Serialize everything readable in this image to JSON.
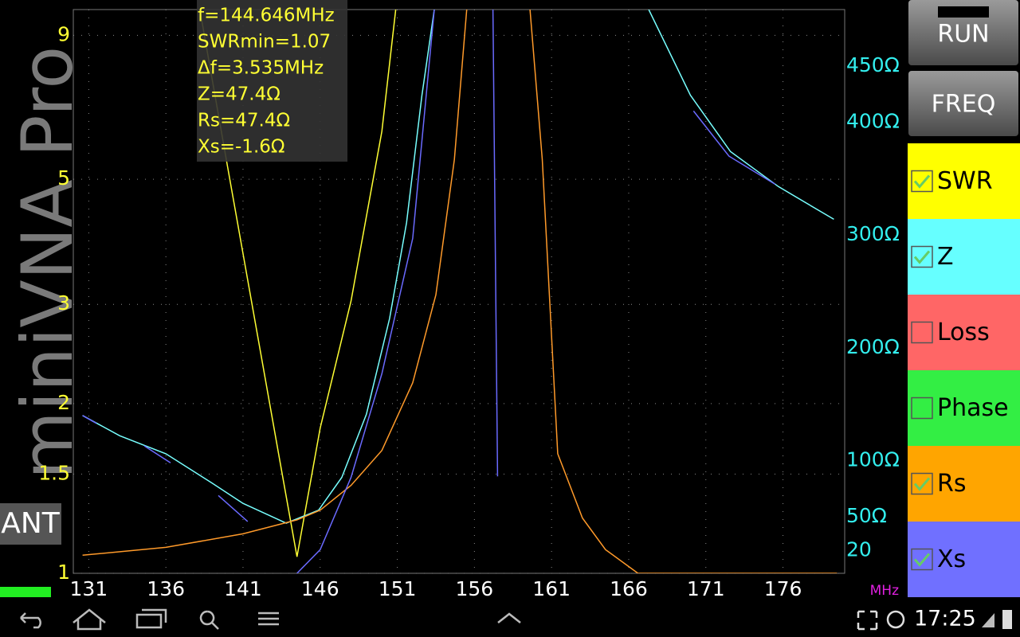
{
  "chart_data": {
    "type": "line",
    "annotations": [
      "f=144.646MHz",
      "SWRmin=1.07",
      "Δf=3.535MHz",
      "Z=47.4Ω",
      "Rs=47.4Ω",
      "Xs=-1.6Ω"
    ],
    "xlabel": "MHz",
    "xlim": [
      130,
      180
    ],
    "xticks": [
      131,
      136,
      141,
      146,
      151,
      156,
      161,
      166,
      171,
      176
    ],
    "ylim": [
      1,
      10
    ],
    "ylog": true,
    "yticks": [
      1,
      1.5,
      2,
      3,
      5,
      9
    ],
    "y2lim": [
      0,
      500
    ],
    "y2ticks": [
      20,
      {
        "value": 50,
        "label": "50Ω"
      },
      {
        "value": 100,
        "label": "100Ω"
      },
      {
        "value": 200,
        "label": "200Ω"
      },
      {
        "value": 300,
        "label": "300Ω"
      },
      {
        "value": 400,
        "label": "400Ω"
      },
      {
        "value": 450,
        "label": "450Ω"
      }
    ],
    "grid": true,
    "series": [
      {
        "name": "SWR",
        "color": "#ffff33",
        "axis": "y",
        "x": [
          138.2,
          140,
          142,
          143.5,
          144.5,
          146,
          148,
          150,
          150.9
        ],
        "values": [
          10,
          5.26,
          2.59,
          1.52,
          1.07,
          1.81,
          3.04,
          6.08,
          10
        ]
      },
      {
        "name": "Z",
        "color": "#77ffff",
        "axis": "y2",
        "x": [
          130.6,
          133,
          136,
          139,
          141,
          143.8,
          145.9,
          147.4,
          149,
          150.5,
          151.6,
          152.6,
          153.4,
          160,
          167.3,
          170,
          172.6,
          175.7,
          179.3
        ],
        "values": [
          140,
          122,
          106,
          80,
          62,
          44.5,
          56,
          85,
          141,
          226,
          311,
          424,
          500,
          null,
          500,
          424,
          374,
          343,
          314
        ]
      },
      {
        "name": "Rs",
        "color": "#ff9a2a",
        "axis": "y2",
        "x": [
          130.6,
          136,
          141,
          144.5,
          146,
          148,
          150,
          152,
          153.5,
          154.7,
          155.5,
          157.5,
          159.6,
          160.4,
          161.4,
          163,
          164.5,
          166.6,
          170,
          175,
          179.5
        ],
        "values": [
          16,
          23,
          35,
          47.4,
          56,
          78,
          109,
          169,
          247,
          367,
          500,
          null,
          500,
          367,
          106,
          49,
          21,
          0,
          0,
          0,
          0
        ]
      },
      {
        "name": "Xs",
        "color": "#6a6aff",
        "axis": "y2",
        "x": [
          130.6,
          131.5,
          133,
          134.6,
          136.3,
          138,
          139.4,
          141.3,
          143,
          144.5,
          146,
          148,
          150,
          152,
          153.4,
          155,
          157.2,
          157.5,
          165,
          170.2,
          172.5,
          175.5
        ],
        "values": [
          140,
          133,
          null,
          113,
          98,
          null,
          69,
          46,
          null,
          0,
          21,
          85,
          177,
          297,
          500,
          null,
          500,
          86,
          null,
          410,
          370,
          345
        ]
      }
    ],
    "legend": [
      {
        "name": "SWR",
        "color": "#ffff00",
        "checked": true
      },
      {
        "name": "Z",
        "color": "#66ffff",
        "checked": true
      },
      {
        "name": "Loss",
        "color": "#ff6666",
        "checked": false
      },
      {
        "name": "Phase",
        "color": "#33ee44",
        "checked": false
      },
      {
        "name": "Rs",
        "color": "#ffa500",
        "checked": true
      },
      {
        "name": "Xs",
        "color": "#7070ff",
        "checked": true
      }
    ]
  },
  "ui": {
    "watermark": "miniVNA Pro",
    "side_label": "ANT",
    "buttons": [
      "RUN",
      "FREQ"
    ],
    "status": {
      "time": "17:25"
    }
  }
}
